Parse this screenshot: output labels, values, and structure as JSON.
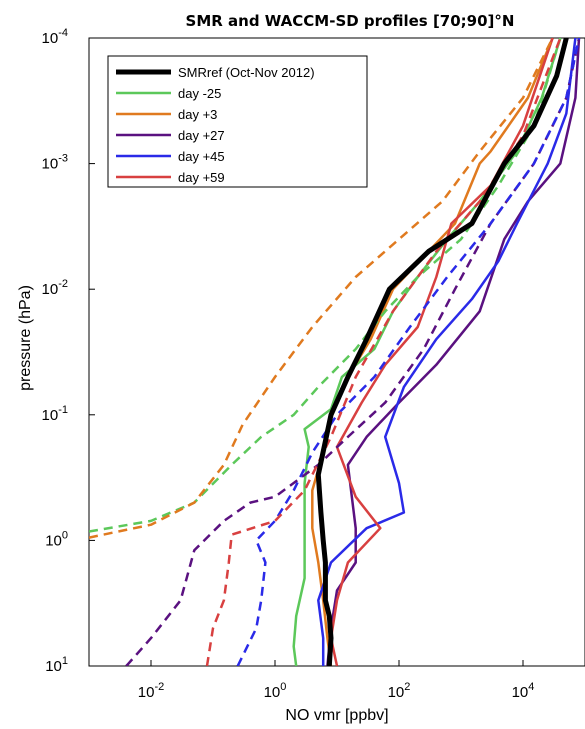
{
  "chart_data": {
    "type": "line",
    "title": "SMR and WACCM-SD profiles  [70;90]°N",
    "xlabel": "NO vmr  [ppbv]",
    "ylabel": "pressure  (hPa)",
    "x_scale": "log",
    "y_scale": "log",
    "y_reversed": true,
    "xlim": [
      0.001,
      100000
    ],
    "ylim": [
      10,
      0.0001
    ],
    "x_ticks": [
      {
        "value": 0.01,
        "base": "10",
        "exp": "-2"
      },
      {
        "value": 1,
        "base": "10",
        "exp": "0"
      },
      {
        "value": 100,
        "base": "10",
        "exp": "2"
      },
      {
        "value": 10000,
        "base": "10",
        "exp": "4"
      }
    ],
    "y_ticks": [
      {
        "value": 0.0001,
        "base": "10",
        "exp": "-4"
      },
      {
        "value": 0.001,
        "base": "10",
        "exp": "-3"
      },
      {
        "value": 0.01,
        "base": "10",
        "exp": "-2"
      },
      {
        "value": 0.1,
        "base": "10",
        "exp": "-1"
      },
      {
        "value": 1,
        "base": "10",
        "exp": "0"
      },
      {
        "value": 10,
        "base": "10",
        "exp": "1"
      }
    ],
    "grid": false,
    "legend_position": "top-left",
    "legend": [
      {
        "label": "SMRref (Oct-Nov 2012)",
        "color": "#000000",
        "width": 5
      },
      {
        "label": "day -25",
        "color": "#5cc85a",
        "width": 2.5
      },
      {
        "label": "day +3",
        "color": "#e07a1f",
        "width": 2.5
      },
      {
        "label": "day +27",
        "color": "#5a1180",
        "width": 2.5
      },
      {
        "label": "day +45",
        "color": "#2a2ae8",
        "width": 2.5
      },
      {
        "label": "day +59",
        "color": "#d84040",
        "width": 2.5
      }
    ],
    "series": [
      {
        "name": "SMRref (Oct-Nov 2012)",
        "color": "#000000",
        "width": 5,
        "dash": false,
        "points": [
          [
            7.5,
            10
          ],
          [
            8,
            6
          ],
          [
            7.5,
            4
          ],
          [
            6.5,
            3
          ],
          [
            6.5,
            1.5
          ],
          [
            6,
            1
          ],
          [
            5.5,
            0.6
          ],
          [
            5,
            0.3
          ],
          [
            8,
            0.1
          ],
          [
            15,
            0.05
          ],
          [
            30,
            0.025
          ],
          [
            70,
            0.01
          ],
          [
            300,
            0.005
          ],
          [
            1500,
            0.003
          ],
          [
            5000,
            0.001
          ],
          [
            15000,
            0.0005
          ],
          [
            35000,
            0.0002
          ],
          [
            50000,
            0.0001
          ]
        ]
      },
      {
        "name": "day -25",
        "color": "#5cc85a",
        "width": 2.5,
        "dash": false,
        "points": [
          [
            2.2,
            10
          ],
          [
            2,
            7
          ],
          [
            2.2,
            4
          ],
          [
            3,
            2
          ],
          [
            3,
            0.8
          ],
          [
            3,
            0.35
          ],
          [
            3.5,
            0.18
          ],
          [
            3,
            0.13
          ],
          [
            8,
            0.09
          ],
          [
            12,
            0.05
          ],
          [
            40,
            0.03
          ],
          [
            80,
            0.015
          ],
          [
            200,
            0.008
          ],
          [
            600,
            0.004
          ],
          [
            2000,
            0.002
          ],
          [
            8000,
            0.0008
          ],
          [
            20000,
            0.0003
          ],
          [
            40000,
            0.0001
          ]
        ]
      },
      {
        "name": "day +3",
        "color": "#e07a1f",
        "width": 2.5,
        "dash": false,
        "points": [
          [
            8,
            10
          ],
          [
            7,
            6
          ],
          [
            6,
            3
          ],
          [
            5,
            1.5
          ],
          [
            4,
            0.8
          ],
          [
            4,
            0.4
          ],
          [
            6,
            0.2
          ],
          [
            8,
            0.1
          ],
          [
            15,
            0.05
          ],
          [
            35,
            0.025
          ],
          [
            80,
            0.01
          ],
          [
            300,
            0.005
          ],
          [
            800,
            0.003
          ],
          [
            2000,
            0.001
          ],
          [
            3000,
            0.0008
          ],
          [
            12000,
            0.0003
          ],
          [
            30000,
            0.0001
          ]
        ]
      },
      {
        "name": "day +27",
        "color": "#5a1180",
        "width": 2.5,
        "dash": false,
        "points": [
          [
            7,
            10
          ],
          [
            8,
            5
          ],
          [
            10,
            2.5
          ],
          [
            20,
            1.5
          ],
          [
            20,
            0.8
          ],
          [
            15,
            0.25
          ],
          [
            30,
            0.15
          ],
          [
            100,
            0.08
          ],
          [
            400,
            0.04
          ],
          [
            2000,
            0.015
          ],
          [
            5000,
            0.004
          ],
          [
            12000,
            0.002
          ],
          [
            40000,
            0.001
          ],
          [
            70000,
            0.0003
          ],
          [
            80000,
            0.0001
          ]
        ]
      },
      {
        "name": "day +45",
        "color": "#2a2ae8",
        "width": 2.5,
        "dash": false,
        "points": [
          [
            6,
            10
          ],
          [
            6,
            6
          ],
          [
            5,
            3
          ],
          [
            8,
            1.5
          ],
          [
            30,
            0.8
          ],
          [
            120,
            0.6
          ],
          [
            100,
            0.35
          ],
          [
            60,
            0.15
          ],
          [
            120,
            0.06
          ],
          [
            400,
            0.025
          ],
          [
            1500,
            0.012
          ],
          [
            4000,
            0.006
          ],
          [
            8000,
            0.003
          ],
          [
            25000,
            0.001
          ],
          [
            50000,
            0.0004
          ],
          [
            70000,
            0.0001
          ]
        ]
      },
      {
        "name": "day +59",
        "color": "#d84040",
        "width": 2.5,
        "dash": false,
        "points": [
          [
            10,
            10
          ],
          [
            8,
            6
          ],
          [
            10,
            3
          ],
          [
            15,
            1.5
          ],
          [
            50,
            0.8
          ],
          [
            20,
            0.45
          ],
          [
            10,
            0.18
          ],
          [
            25,
            0.08
          ],
          [
            60,
            0.04
          ],
          [
            200,
            0.02
          ],
          [
            400,
            0.008
          ],
          [
            700,
            0.003
          ],
          [
            3000,
            0.0015
          ],
          [
            10000,
            0.0005
          ],
          [
            30000,
            0.0001
          ]
        ]
      },
      {
        "name": "day -25 WACCM-SD",
        "color": "#5cc85a",
        "width": 2.5,
        "dash": true,
        "points": [
          [
            0.001,
            0.85
          ],
          [
            0.01,
            0.7
          ],
          [
            0.05,
            0.5
          ],
          [
            0.2,
            0.25
          ],
          [
            0.6,
            0.15
          ],
          [
            2,
            0.1
          ],
          [
            5,
            0.06
          ],
          [
            20,
            0.03
          ],
          [
            60,
            0.015
          ],
          [
            200,
            0.008
          ],
          [
            1000,
            0.004
          ],
          [
            4000,
            0.0015
          ],
          [
            15000,
            0.0005
          ],
          [
            40000,
            0.0001
          ]
        ]
      },
      {
        "name": "day +3 WACCM-SD",
        "color": "#e07a1f",
        "width": 2.5,
        "dash": true,
        "points": [
          [
            0.001,
            0.95
          ],
          [
            0.01,
            0.75
          ],
          [
            0.05,
            0.5
          ],
          [
            0.15,
            0.25
          ],
          [
            0.3,
            0.12
          ],
          [
            1,
            0.05
          ],
          [
            4,
            0.02
          ],
          [
            20,
            0.008
          ],
          [
            100,
            0.004
          ],
          [
            500,
            0.002
          ],
          [
            2000,
            0.0008
          ],
          [
            10000,
            0.0003
          ],
          [
            30000,
            0.0001
          ]
        ]
      },
      {
        "name": "day +27 WACCM-SD",
        "color": "#5a1180",
        "width": 2.5,
        "dash": true,
        "points": [
          [
            0.004,
            10
          ],
          [
            0.01,
            6
          ],
          [
            0.03,
            3
          ],
          [
            0.05,
            1.2
          ],
          [
            0.15,
            0.7
          ],
          [
            0.4,
            0.5
          ],
          [
            1,
            0.45
          ],
          [
            5,
            0.25
          ],
          [
            15,
            0.15
          ],
          [
            60,
            0.08
          ],
          [
            250,
            0.03
          ],
          [
            800,
            0.01
          ],
          [
            3000,
            0.003
          ],
          [
            15000,
            0.001
          ],
          [
            50000,
            0.0003
          ],
          [
            80000,
            0.0001
          ]
        ]
      },
      {
        "name": "day +45 WACCM-SD",
        "color": "#2a2ae8",
        "width": 2.5,
        "dash": true,
        "points": [
          [
            0.25,
            10
          ],
          [
            0.5,
            5
          ],
          [
            0.6,
            3
          ],
          [
            0.7,
            1.5
          ],
          [
            0.5,
            1
          ],
          [
            1,
            0.7
          ],
          [
            2,
            0.4
          ],
          [
            4,
            0.2
          ],
          [
            10,
            0.1
          ],
          [
            40,
            0.05
          ],
          [
            150,
            0.02
          ],
          [
            600,
            0.008
          ],
          [
            3000,
            0.003
          ],
          [
            15000,
            0.001
          ],
          [
            50000,
            0.0003
          ],
          [
            80000,
            0.0001
          ]
        ]
      },
      {
        "name": "day +59 WACCM-SD",
        "color": "#d84040",
        "width": 2.5,
        "dash": true,
        "points": [
          [
            0.08,
            10
          ],
          [
            0.1,
            5
          ],
          [
            0.15,
            3
          ],
          [
            0.18,
            1.5
          ],
          [
            0.2,
            0.9
          ],
          [
            1,
            0.7
          ],
          [
            3,
            0.4
          ],
          [
            8,
            0.15
          ],
          [
            20,
            0.05
          ],
          [
            80,
            0.015
          ],
          [
            400,
            0.005
          ],
          [
            2000,
            0.002
          ],
          [
            10000,
            0.0006
          ],
          [
            40000,
            0.0001
          ]
        ]
      }
    ]
  }
}
